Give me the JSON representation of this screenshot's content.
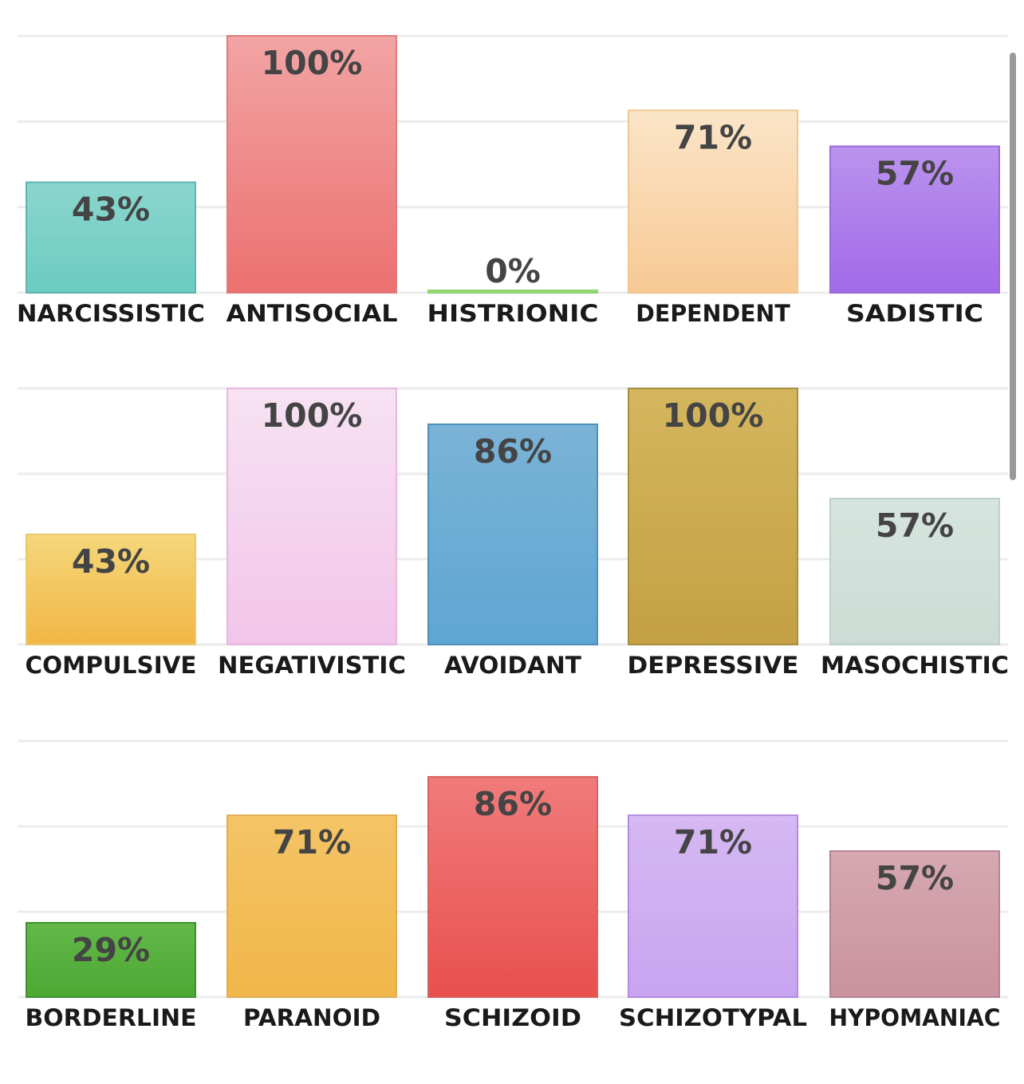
{
  "chart_data": [
    {
      "type": "bar",
      "title": "",
      "xlabel": "",
      "ylabel": "",
      "ylim": [
        0,
        100
      ],
      "grid": true,
      "categories": [
        "NARCISSISTIC",
        "ANTISOCIAL",
        "HISTRIONIC",
        "DEPENDENT",
        "SADISTIC"
      ],
      "values": [
        43,
        100,
        0,
        71,
        57
      ],
      "labels": [
        "43%",
        "100%",
        "0%",
        "71%",
        "57%"
      ],
      "colors": [
        [
          "#8ad6ce",
          "#6ccbc1",
          "#5fb5ad"
        ],
        [
          "#f2a4a4",
          "#ec7070",
          "#e07b7b"
        ],
        [
          "#a8e08c",
          "#8ed36e",
          "#8fd46f"
        ],
        [
          "#fbe5c8",
          "#f7c994",
          "#f0c790"
        ],
        [
          "#bb93ef",
          "#a16ae8",
          "#9a6ad9"
        ]
      ]
    },
    {
      "type": "bar",
      "title": "",
      "xlabel": "",
      "ylabel": "",
      "ylim": [
        0,
        100
      ],
      "grid": true,
      "categories": [
        "COMPULSIVE",
        "NEGATIVISTIC",
        "AVOIDANT",
        "DEPRESSIVE",
        "MASOCHISTIC"
      ],
      "values": [
        43,
        100,
        86,
        100,
        57
      ],
      "labels": [
        "43%",
        "100%",
        "86%",
        "100%",
        "57%"
      ],
      "colors": [
        [
          "#f5d77a",
          "#f1b646",
          "#e8c86a"
        ],
        [
          "#f7e2f2",
          "#f2c5ea",
          "#eab6e0"
        ],
        [
          "#7bb3d6",
          "#5ea6d2",
          "#4f8fbb"
        ],
        [
          "#d4b65e",
          "#c4a043",
          "#a88e40"
        ],
        [
          "#d6e4de",
          "#ccdcd5",
          "#bfd0c8"
        ]
      ]
    },
    {
      "type": "bar",
      "title": "",
      "xlabel": "",
      "ylabel": "",
      "ylim": [
        0,
        100
      ],
      "grid": true,
      "categories": [
        "BORDERLINE",
        "PARANOID",
        "SCHIZOID",
        "SCHIZOTYPAL",
        "HYPOMANIAC"
      ],
      "values": [
        29,
        71,
        86,
        71,
        57
      ],
      "labels": [
        "29%",
        "71%",
        "86%",
        "71%",
        "57%"
      ],
      "colors": [
        [
          "#63b84a",
          "#4da733",
          "#3f8f2c"
        ],
        [
          "#f4c465",
          "#f0b64a",
          "#e2ad55"
        ],
        [
          "#f07b7b",
          "#e8504d",
          "#d9605e"
        ],
        [
          "#d6b8f3",
          "#c8a4f0",
          "#b48ae0"
        ],
        [
          "#d6a8b2",
          "#c9929e",
          "#b58390"
        ]
      ]
    }
  ]
}
